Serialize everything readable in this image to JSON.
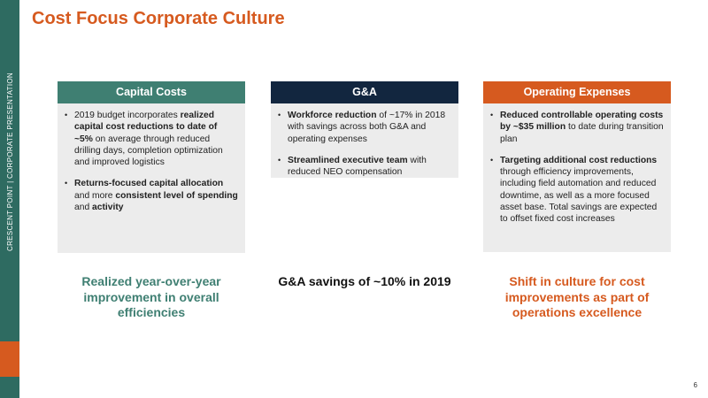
{
  "sidebar": {
    "label": "CRESCENT POINT   |   CORPORATE PRESENTATION"
  },
  "title": "Cost Focus Corporate Culture",
  "columns": [
    {
      "header": "Capital Costs",
      "bullets": [
        [
          {
            "t": "2019 budget incorporates ",
            "b": false
          },
          {
            "t": "realized capital cost reductions to date of ~5%",
            "b": true
          },
          {
            "t": " on average through reduced drilling days, completion optimization and improved logistics",
            "b": false
          }
        ],
        [
          {
            "t": "Returns-focused capital allocation",
            "b": true
          },
          {
            "t": " and more ",
            "b": false
          },
          {
            "t": "consistent level of spending",
            "b": true
          },
          {
            "t": " and ",
            "b": false
          },
          {
            "t": "activity",
            "b": true
          }
        ]
      ],
      "summary": "Realized year-over-year improvement in overall efficiencies"
    },
    {
      "header": "G&A",
      "bullets": [
        [
          {
            "t": "Workforce reduction",
            "b": true
          },
          {
            "t": " of ~17% in 2018 with savings across both G&A and operating expenses",
            "b": false
          }
        ],
        [
          {
            "t": "Streamlined executive team",
            "b": true
          },
          {
            "t": " with reduced NEO compensation",
            "b": false
          }
        ]
      ],
      "summary": "G&A savings of ~10% in 2019"
    },
    {
      "header": "Operating Expenses",
      "bullets": [
        [
          {
            "t": "Reduced controllable operating costs by ~$35 million",
            "b": true
          },
          {
            "t": " to date during transition plan",
            "b": false
          }
        ],
        [
          {
            "t": "Targeting additional cost reductions",
            "b": true
          },
          {
            "t": " through efficiency improvements, including field automation and reduced downtime, as well as a more focused asset base. Total savings are expected to offset fixed cost increases",
            "b": false
          }
        ]
      ],
      "summary": "Shift in culture for cost improvements as part of operations excellence"
    }
  ],
  "page_number": "6"
}
